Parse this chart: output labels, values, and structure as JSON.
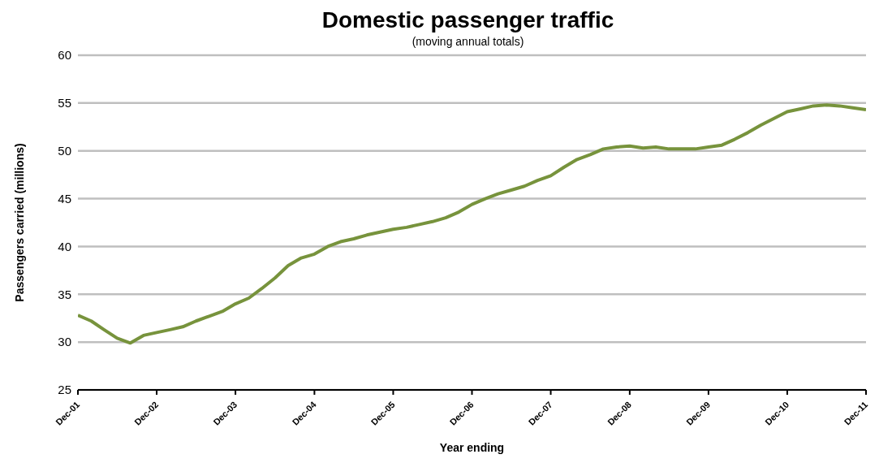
{
  "chart_data": {
    "type": "line",
    "title": "Domestic passenger traffic",
    "subtitle": "(moving annual totals)",
    "xlabel": "Year ending",
    "ylabel": "Passengers  carried (millions)",
    "x": [
      "2001-12",
      "2002-02",
      "2002-04",
      "2002-06",
      "2002-08",
      "2002-10",
      "2002-12",
      "2003-02",
      "2003-04",
      "2003-06",
      "2003-08",
      "2003-10",
      "2003-12",
      "2004-02",
      "2004-04",
      "2004-06",
      "2004-08",
      "2004-10",
      "2004-12",
      "2005-02",
      "2005-04",
      "2005-06",
      "2005-08",
      "2005-10",
      "2005-12",
      "2006-02",
      "2006-04",
      "2006-06",
      "2006-08",
      "2006-10",
      "2006-12",
      "2007-02",
      "2007-04",
      "2007-06",
      "2007-08",
      "2007-10",
      "2007-12",
      "2008-02",
      "2008-04",
      "2008-06",
      "2008-08",
      "2008-10",
      "2008-12",
      "2009-02",
      "2009-04",
      "2009-06",
      "2009-08",
      "2009-10",
      "2009-12",
      "2010-02",
      "2010-04",
      "2010-06",
      "2010-08",
      "2010-10",
      "2010-12",
      "2011-02",
      "2011-04",
      "2011-06",
      "2011-08",
      "2011-10",
      "2011-12"
    ],
    "series": [
      {
        "color": "#77933c",
        "values": [
          32.8,
          32.2,
          31.3,
          30.4,
          29.9,
          30.7,
          31.0,
          31.3,
          31.6,
          32.2,
          32.7,
          33.2,
          34.0,
          34.6,
          35.6,
          36.7,
          38.0,
          38.8,
          39.2,
          40.0,
          40.5,
          40.8,
          41.2,
          41.5,
          41.8,
          42.0,
          42.3,
          42.6,
          43.0,
          43.6,
          44.4,
          45.0,
          45.5,
          45.9,
          46.3,
          46.9,
          47.4,
          48.3,
          49.1,
          49.6,
          50.2,
          50.4,
          50.5,
          50.3,
          50.4,
          50.2,
          50.2,
          50.2,
          50.4,
          50.6,
          51.2,
          51.9,
          52.7,
          53.4,
          54.1,
          54.4,
          54.7,
          54.8,
          54.7,
          54.5,
          54.3
        ]
      }
    ],
    "xlim": [
      "2001-12",
      "2011-12"
    ],
    "xticks": [
      {
        "value": "2001-12",
        "label": "Dec-01"
      },
      {
        "value": "2002-12",
        "label": "Dec-02"
      },
      {
        "value": "2003-12",
        "label": "Dec-03"
      },
      {
        "value": "2004-12",
        "label": "Dec-04"
      },
      {
        "value": "2005-12",
        "label": "Dec-05"
      },
      {
        "value": "2006-12",
        "label": "Dec-06"
      },
      {
        "value": "2007-12",
        "label": "Dec-07"
      },
      {
        "value": "2008-12",
        "label": "Dec-08"
      },
      {
        "value": "2009-12",
        "label": "Dec-09"
      },
      {
        "value": "2010-12",
        "label": "Dec-10"
      },
      {
        "value": "2011-12",
        "label": "Dec-11"
      }
    ],
    "ylim": [
      25,
      60
    ],
    "yticks": [
      25,
      30,
      35,
      40,
      45,
      50,
      55,
      60
    ],
    "grid": "y",
    "legend": false,
    "marker": "none",
    "line_style": "solid"
  }
}
